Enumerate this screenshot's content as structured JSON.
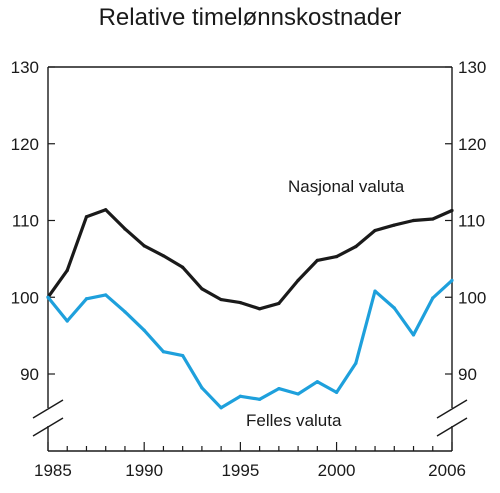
{
  "chart_data": {
    "type": "line",
    "title": "Relative timelønnskostnader",
    "xlabel": "",
    "ylabel": "",
    "x_tick_labels": [
      "1985",
      "1990",
      "1995",
      "2000",
      "2006"
    ],
    "x_ticks": [
      1985,
      1990,
      1995,
      2000,
      2006
    ],
    "y_ticks": [
      90,
      100,
      110,
      120,
      130
    ],
    "ylim": [
      90,
      130
    ],
    "y_axis_break": true,
    "dual_y_axis": true,
    "grid": false,
    "x": [
      1985,
      1986,
      1987,
      1988,
      1989,
      1990,
      1991,
      1992,
      1993,
      1994,
      1995,
      1996,
      1997,
      1998,
      1999,
      2000,
      2001,
      2002,
      2003,
      2004,
      2005,
      2006
    ],
    "series": [
      {
        "name": "Nasjonal valuta",
        "color": "#1a1a1a",
        "values": [
          100,
          103.5,
          110.5,
          111.4,
          108.9,
          106.7,
          105.4,
          103.9,
          101.1,
          99.7,
          99.3,
          98.5,
          99.2,
          102.2,
          104.8,
          105.3,
          106.6,
          108.7,
          109.4,
          110.0,
          110.2,
          111.3
        ]
      },
      {
        "name": "Felles valuta",
        "color": "#1ea0dc",
        "values": [
          100,
          96.9,
          99.8,
          100.3,
          98.1,
          95.7,
          92.9,
          92.4,
          88.2,
          85.6,
          87.1,
          86.7,
          88.1,
          87.4,
          89.0,
          87.6,
          91.4,
          100.8,
          98.6,
          95.1,
          99.9,
          102.2
        ]
      }
    ]
  }
}
